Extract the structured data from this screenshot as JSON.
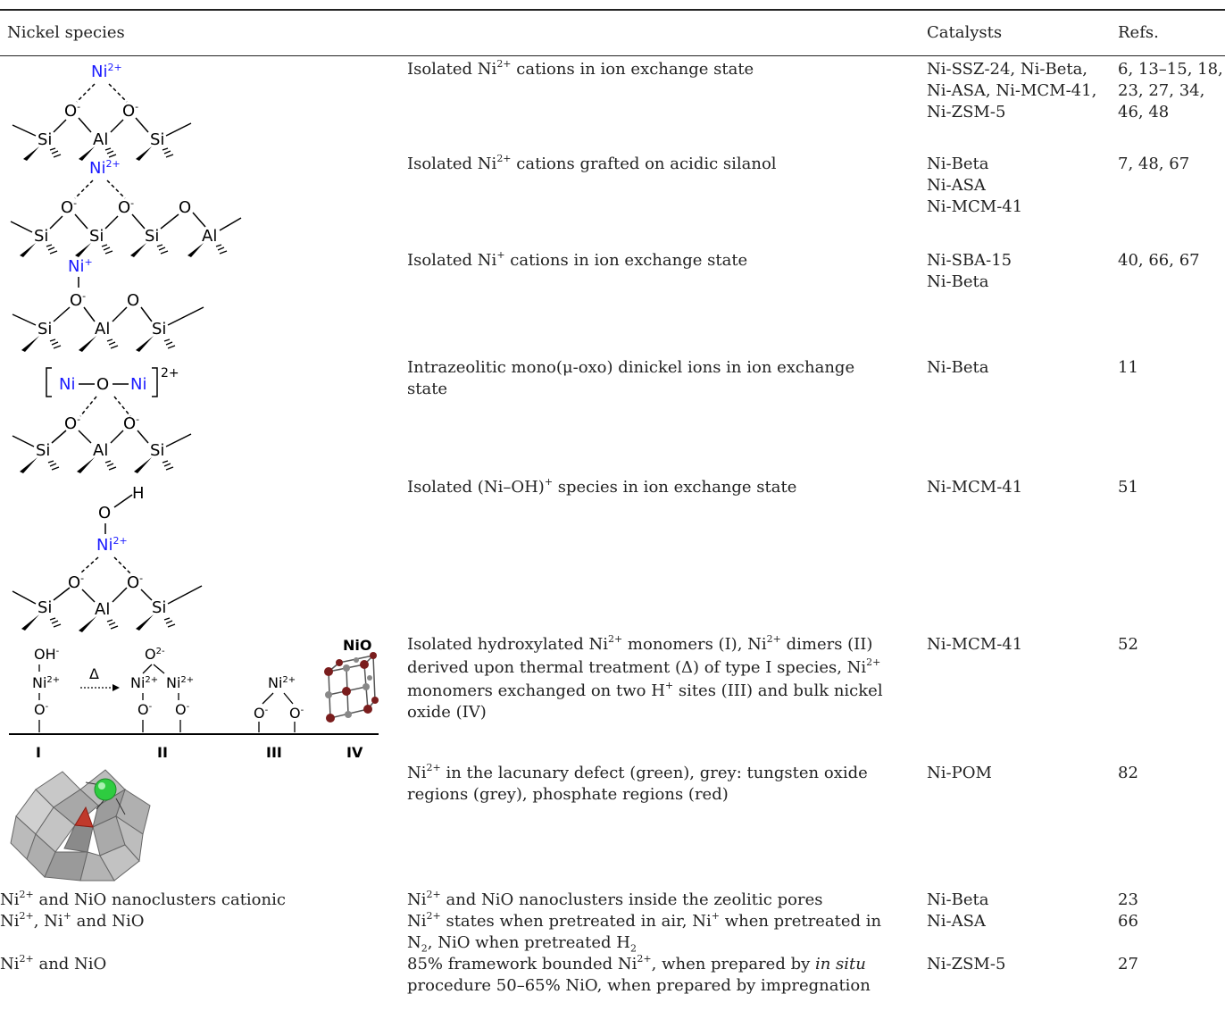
{
  "header": {
    "species": "Nickel species",
    "catalysts": "Catalysts",
    "refs": "Refs."
  },
  "rows": [
    {
      "desc_l1": "Isolated Ni²⁺ cations in ion exchange state",
      "cat_l1": "Ni-SSZ-24, Ni-Beta,",
      "cat_l2": "Ni-ASA, Ni-MCM-41,",
      "cat_l3": "Ni-ZSM-5",
      "ref_l1": "6, 13–15, 18,",
      "ref_l2": "23, 27, 34,",
      "ref_l3": "46, 48"
    },
    {
      "desc_l1": "Isolated Ni²⁺ cations grafted on acidic silanol",
      "cat_l1": "Ni-Beta",
      "cat_l2": "Ni-ASA",
      "cat_l3": "Ni-MCM-41",
      "ref_l1": "7, 48, 67"
    },
    {
      "desc_l1": "Isolated Ni⁺ cations in ion exchange state",
      "cat_l1": "Ni-SBA-15",
      "cat_l2": "Ni-Beta",
      "ref_l1": "40, 66, 67"
    },
    {
      "desc_l1": "Intrazeolitic mono(μ-oxo) dinickel ions in ion exchange",
      "desc_l2": "state",
      "cat_l1": "Ni-Beta",
      "ref_l1": "11"
    },
    {
      "desc_l1": "Isolated (Ni–OH)⁺ species in ion exchange state",
      "cat_l1": "Ni-MCM-41",
      "ref_l1": "51"
    },
    {
      "desc_l1": "Isolated hydroxylated Ni²⁺ monomers (I), Ni²⁺ dimers (II)",
      "desc_l2": "derived upon thermal treatment (Δ) of type I species, Ni²⁺",
      "desc_l3": "monomers exchanged on two H⁺ sites (III) and bulk nickel",
      "desc_l4": "oxide (IV)",
      "cat_l1": "Ni-MCM-41",
      "ref_l1": "52"
    },
    {
      "desc_l1": "Ni²⁺ in the lacunary defect (green), grey: tungsten oxide",
      "desc_l2": "regions (grey), phosphate regions (red)",
      "cat_l1": "Ni-POM",
      "ref_l1": "82"
    },
    {
      "species": "Ni²⁺ and NiO nanoclusters cationic",
      "desc_l1": "Ni²⁺ and NiO nanoclusters inside the zeolitic pores",
      "cat_l1": "Ni-Beta",
      "ref_l1": "23"
    },
    {
      "species": "Ni²⁺, Ni⁺ and NiO",
      "desc_l1": "Ni²⁺ states when pretreated in air, Ni⁺ when pretreated in",
      "desc_l2": "N₂, NiO when pretreated H₂",
      "cat_l1": "Ni-ASA",
      "ref_l1": "66"
    },
    {
      "species": "Ni²⁺ and NiO",
      "desc_l1": "85% framework bounded Ni²⁺, when prepared by in situ",
      "desc_l2": "procedure 50–65% NiO, when prepared by impregnation",
      "cat_l1": "Ni-ZSM-5",
      "ref_l1": "27"
    }
  ],
  "struct_labels": {
    "ni2": "Ni2+",
    "ni1": "Ni+",
    "si": "Si",
    "al": "Al",
    "o": "O",
    "h": "H",
    "ni": "Ni",
    "charge": "2+",
    "nio": "NiO",
    "oh_minus": "OH-",
    "o2_minus": "O2-",
    "o_minus": "O-",
    "delta": "Δ",
    "I": "I",
    "II": "II",
    "III": "III",
    "IV": "IV"
  },
  "colors": {
    "ni_blue": "#1a1aff",
    "nio_red": "#7a1d1d",
    "green": "#2ecc40",
    "grey": "#b8b8b8",
    "red": "#c0392b"
  }
}
